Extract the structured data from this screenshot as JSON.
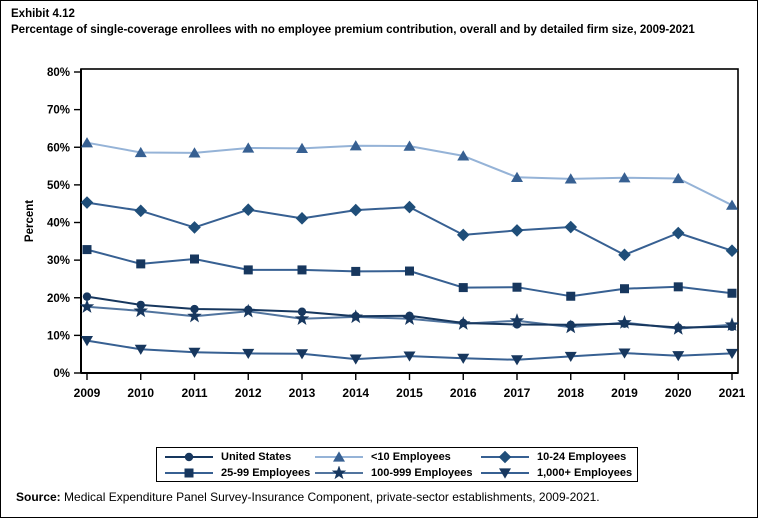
{
  "title": {
    "exhibit": "Exhibit 4.12",
    "text": "Percentage of single-coverage enrollees with no employee premium contribution, overall and by detailed firm size, 2009-2021"
  },
  "source": {
    "label": "Source:",
    "text": " Medical Expenditure Panel Survey-Insurance Component, private-sector establishments, 2009-2021."
  },
  "chart_data": {
    "type": "line",
    "x": [
      2009,
      2010,
      2011,
      2012,
      2013,
      2014,
      2015,
      2016,
      2017,
      2018,
      2019,
      2020,
      2021
    ],
    "xlabel": "",
    "ylabel": "Percent",
    "ylim": [
      0,
      80
    ],
    "ytick_step": 10,
    "ytick_suffix": "%",
    "grid": false,
    "legend_position": "bottom-boxed",
    "frame_color": "#000000",
    "series": [
      {
        "name": "United States",
        "marker": "circle",
        "line_color": "#17375E",
        "marker_color": "#17375E",
        "values": [
          20.3,
          18.1,
          17.0,
          16.8,
          16.3,
          15.1,
          15.2,
          13.3,
          12.9,
          12.8,
          13.1,
          12.1,
          12.3
        ]
      },
      {
        "name": "<10 Employees",
        "marker": "triangle",
        "line_color": "#95B3D7",
        "marker_color": "#376092",
        "values": [
          61.2,
          58.6,
          58.5,
          59.8,
          59.7,
          60.4,
          60.3,
          57.7,
          52.0,
          51.6,
          51.9,
          51.7,
          44.6
        ]
      },
      {
        "name": "10-24 Employees",
        "marker": "diamond",
        "line_color": "#376092",
        "marker_color": "#1F4E79",
        "values": [
          45.3,
          43.1,
          38.7,
          43.4,
          41.1,
          43.3,
          44.1,
          36.7,
          37.9,
          38.8,
          31.4,
          37.2,
          32.5
        ]
      },
      {
        "name": "25-99 Employees",
        "marker": "square",
        "line_color": "#376092",
        "marker_color": "#17375E",
        "values": [
          32.8,
          29.0,
          30.3,
          27.4,
          27.4,
          27.0,
          27.1,
          22.7,
          22.8,
          20.4,
          22.4,
          22.9,
          21.2
        ]
      },
      {
        "name": "100-999 Employees",
        "marker": "star",
        "line_color": "#51749E",
        "marker_color": "#17375E",
        "values": [
          17.6,
          16.5,
          15.1,
          16.4,
          14.4,
          14.9,
          14.4,
          13.1,
          13.9,
          12.2,
          13.4,
          11.8,
          12.8
        ]
      },
      {
        "name": "1,000+ Employees",
        "marker": "triangle-down",
        "line_color": "#376092",
        "marker_color": "#17375E",
        "values": [
          8.6,
          6.3,
          5.5,
          5.2,
          5.1,
          3.7,
          4.5,
          3.9,
          3.5,
          4.4,
          5.3,
          4.6,
          5.2
        ]
      }
    ]
  }
}
